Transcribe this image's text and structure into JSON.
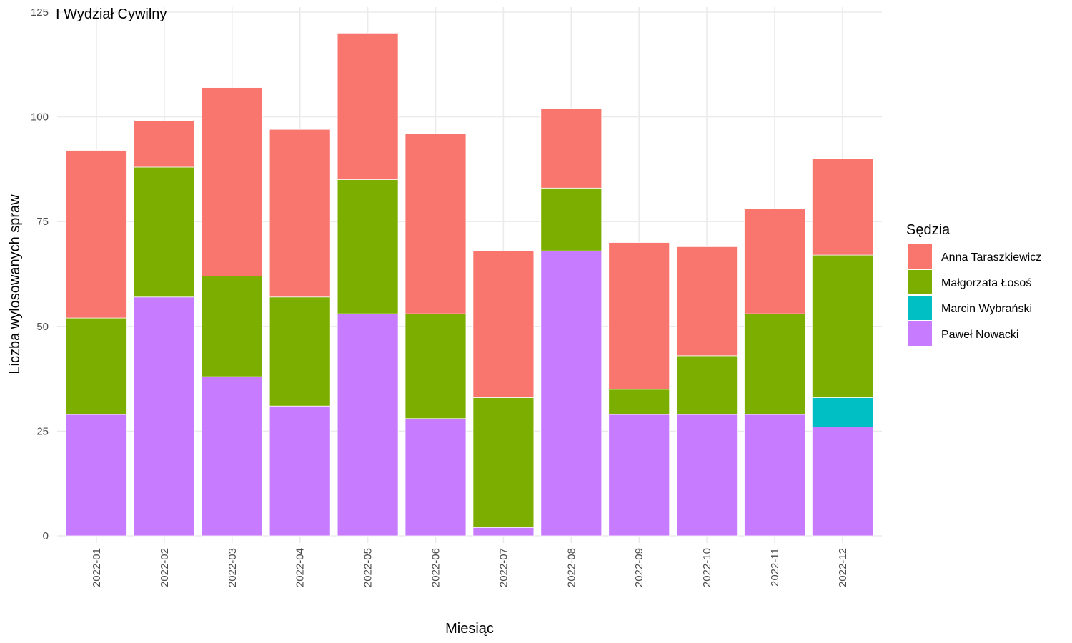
{
  "chart_data": {
    "type": "bar",
    "stacked": true,
    "title": "I Wydział Cywilny",
    "xlabel": "Miesiąc",
    "ylabel": "Liczba wylosowanych spraw",
    "ylim": [
      0,
      125
    ],
    "yticks": [
      0,
      25,
      50,
      75,
      100,
      125
    ],
    "grid": true,
    "legend_title": "Sędzia",
    "legend_position": "right",
    "categories": [
      "2022-01",
      "2022-02",
      "2022-03",
      "2022-04",
      "2022-05",
      "2022-06",
      "2022-07",
      "2022-08",
      "2022-09",
      "2022-10",
      "2022-11",
      "2022-12"
    ],
    "series": [
      {
        "name": "Anna Taraszkiewicz",
        "color": "#F8766D",
        "values": [
          40,
          11,
          45,
          40,
          35,
          43,
          35,
          19,
          35,
          26,
          25,
          23
        ]
      },
      {
        "name": "Małgorzata Łosoś",
        "color": "#7CAE00",
        "values": [
          23,
          31,
          24,
          26,
          32,
          25,
          31,
          15,
          6,
          14,
          24,
          34
        ]
      },
      {
        "name": "Marcin Wybrański",
        "color": "#00BFC4",
        "values": [
          0,
          0,
          0,
          0,
          0,
          0,
          0,
          0,
          0,
          0,
          0,
          7
        ]
      },
      {
        "name": "Paweł Nowacki",
        "color": "#C77CFF",
        "values": [
          29,
          57,
          38,
          31,
          53,
          28,
          2,
          68,
          29,
          29,
          29,
          26
        ]
      }
    ]
  }
}
